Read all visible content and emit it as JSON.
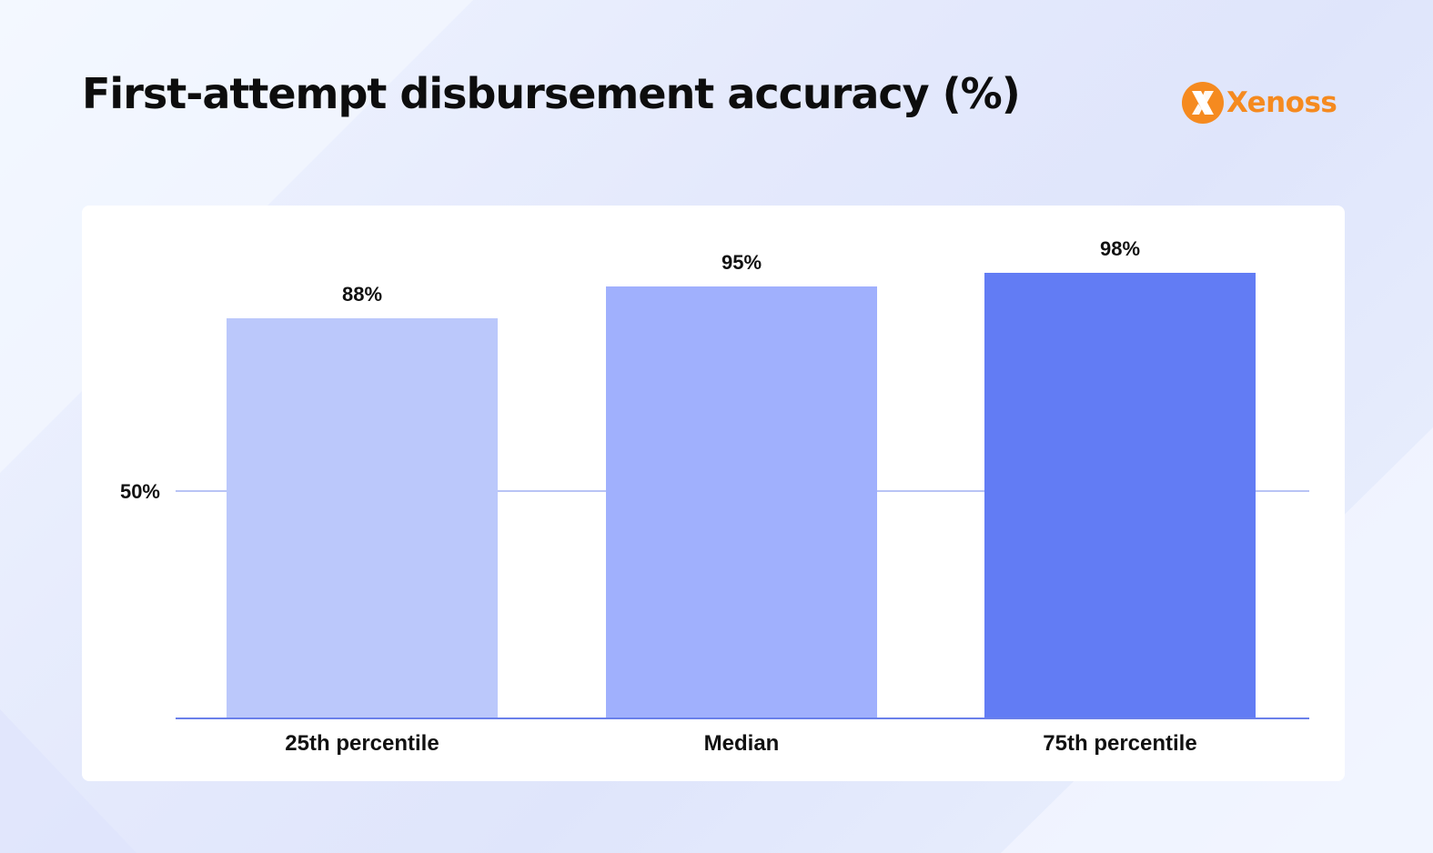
{
  "header": {
    "title": "First-attempt disbursement accuracy (%)",
    "brand": "Xenoss"
  },
  "colors": {
    "brand": "#f58a1f",
    "grid": "#b9c4f5",
    "axis": "#6a80ea"
  },
  "chart_data": {
    "type": "bar",
    "title": "First-attempt disbursement accuracy (%)",
    "categories": [
      "25th percentile",
      "Median",
      "75th percentile"
    ],
    "values": [
      88,
      95,
      98
    ],
    "data_labels": [
      "88%",
      "95%",
      "98%"
    ],
    "bar_colors": [
      "#bbc8fb",
      "#a0b0fd",
      "#627cf4"
    ],
    "ylim": [
      0,
      100
    ],
    "y_ticks": [
      {
        "value": 50,
        "label": "50%"
      }
    ],
    "xlabel": "",
    "ylabel": "",
    "grid": true,
    "legend": "none"
  }
}
